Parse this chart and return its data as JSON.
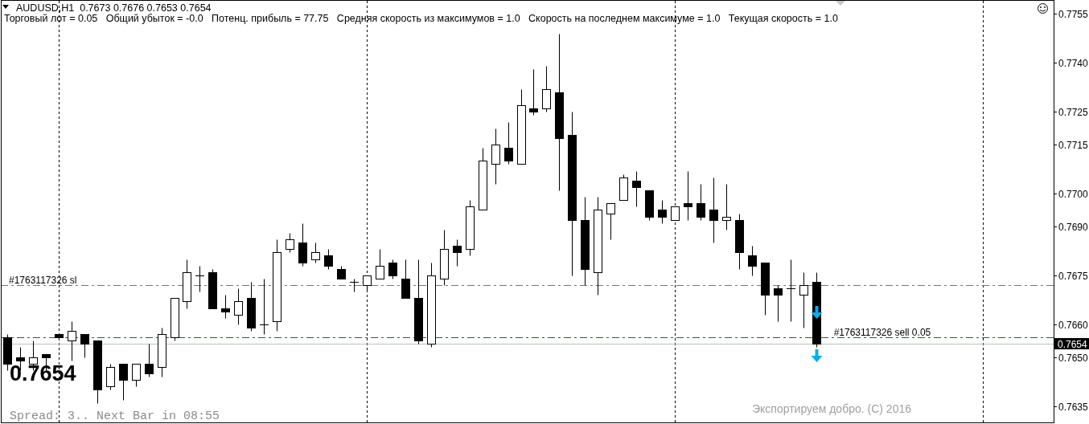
{
  "chart_data": {
    "type": "candlestick",
    "title": "AUDUSD,H1  0.7673 0.7676 0.7653 0.7654",
    "subtitle": "Торговый лот = 0.05   Общий убыток = -0.0   Потенц. прибыль = 77.75   Средняя скорость из максимумов = 1.0   Скорость на последнем максимуме = 1.0   Текущая скорость = 1.0",
    "categories": [
      null,
      null,
      null,
      null,
      null,
      null,
      null,
      null,
      null,
      null,
      null,
      null,
      null,
      null,
      null,
      null,
      null,
      null,
      null,
      null,
      null,
      null,
      null,
      null,
      null,
      null,
      null,
      null,
      null,
      null,
      null,
      null,
      null,
      null,
      null,
      null,
      null,
      null,
      null,
      null,
      null,
      null,
      null,
      null,
      null,
      null,
      null,
      null,
      null,
      null,
      null,
      null,
      null,
      null,
      null,
      null,
      null,
      null,
      null,
      null,
      null,
      null,
      null,
      null,
      null,
      null,
      null,
      null,
      null,
      null,
      null,
      null,
      null,
      null,
      null,
      null,
      null,
      null,
      null,
      null,
      null,
      null
    ],
    "ohlc": [
      [
        0.7656,
        0.7657,
        0.7646,
        0.7648
      ],
      [
        0.765,
        0.7653,
        0.7646,
        0.7649
      ],
      [
        0.7648,
        0.7655,
        0.7646,
        0.765
      ],
      [
        0.7651,
        0.7651,
        0.7646,
        0.765
      ],
      [
        0.7657,
        0.7657,
        0.7656,
        0.7656
      ],
      [
        0.7655,
        0.7661,
        0.7649,
        0.7658
      ],
      [
        0.7657,
        0.7657,
        0.765,
        0.7654
      ],
      [
        0.7655,
        0.7655,
        0.7636,
        0.764
      ],
      [
        0.7641,
        0.7648,
        0.764,
        0.7647
      ],
      [
        0.7648,
        0.7648,
        0.7637,
        0.7643
      ],
      [
        0.7643,
        0.7648,
        0.7641,
        0.7648
      ],
      [
        0.7648,
        0.7654,
        0.7644,
        0.7645
      ],
      [
        0.7647,
        0.7659,
        0.7644,
        0.7657
      ],
      [
        0.7656,
        0.7668,
        0.7655,
        0.7668
      ],
      [
        0.7667,
        0.768,
        0.7665,
        0.7676
      ],
      [
        0.7675,
        0.7678,
        0.767,
        0.7675
      ],
      [
        0.7676,
        0.7677,
        0.7665,
        0.7665
      ],
      [
        0.7665,
        0.7669,
        0.7662,
        0.7664
      ],
      [
        0.7663,
        0.7671,
        0.766,
        0.7667
      ],
      [
        0.7668,
        0.7673,
        0.7658,
        0.7659
      ],
      [
        0.766,
        0.7674,
        0.7657,
        0.766
      ],
      [
        0.7661,
        0.7686,
        0.7658,
        0.7682
      ],
      [
        0.7683,
        0.7688,
        0.7682,
        0.7686
      ],
      [
        0.7685,
        0.7691,
        0.7678,
        0.7679
      ],
      [
        0.768,
        0.7685,
        0.7679,
        0.7682
      ],
      [
        0.7681,
        0.7683,
        0.7677,
        0.7678
      ],
      [
        0.7677,
        0.7678,
        0.7674,
        0.7674
      ],
      [
        0.7673,
        0.7674,
        0.767,
        0.7673
      ],
      [
        0.7672,
        0.7675,
        0.767,
        0.7675
      ],
      [
        0.7674,
        0.7683,
        0.7674,
        0.7678
      ],
      [
        0.7679,
        0.768,
        0.7674,
        0.7675
      ],
      [
        0.7674,
        0.768,
        0.7668,
        0.7668
      ],
      [
        0.7668,
        0.768,
        0.7654,
        0.7655
      ],
      [
        0.7654,
        0.7679,
        0.7653,
        0.7675
      ],
      [
        0.7674,
        0.7689,
        0.7672,
        0.7683
      ],
      [
        0.7684,
        0.7686,
        0.7678,
        0.7682
      ],
      [
        0.7683,
        0.7698,
        0.7681,
        0.7696
      ],
      [
        0.7695,
        0.7714,
        0.7695,
        0.771
      ],
      [
        0.7709,
        0.772,
        0.7703,
        0.7715
      ],
      [
        0.7714,
        0.7722,
        0.7709,
        0.771
      ],
      [
        0.7709,
        0.7732,
        0.7709,
        0.7727
      ],
      [
        0.7726,
        0.7738,
        0.7724,
        0.7725
      ],
      [
        0.7726,
        0.7739,
        0.7725,
        0.7732
      ],
      [
        0.7731,
        0.7749,
        0.7701,
        0.7717
      ],
      [
        0.7718,
        0.7725,
        0.7675,
        0.7692
      ],
      [
        0.7692,
        0.7699,
        0.7672,
        0.7677
      ],
      [
        0.7676,
        0.7699,
        0.7669,
        0.7695
      ],
      [
        0.7694,
        0.7697,
        0.7686,
        0.7697
      ],
      [
        0.7698,
        0.7706,
        0.7698,
        0.7705
      ],
      [
        0.7704,
        0.7707,
        0.7696,
        0.7702
      ],
      [
        0.7701,
        0.7701,
        0.7692,
        0.7693
      ],
      [
        0.7695,
        0.7698,
        0.7691,
        0.7693
      ],
      [
        0.7692,
        0.7696,
        0.7692,
        0.7696
      ],
      [
        0.7697,
        0.7707,
        0.7692,
        0.7696
      ],
      [
        0.7697,
        0.7703,
        0.7692,
        0.7693
      ],
      [
        0.7695,
        0.7705,
        0.7685,
        0.7692
      ],
      [
        0.7692,
        0.7703,
        0.7689,
        0.7693
      ],
      [
        0.7692,
        0.7694,
        0.7677,
        0.7682
      ],
      [
        0.7681,
        0.7684,
        0.7675,
        0.7678
      ],
      [
        0.7679,
        0.7679,
        0.7663,
        0.7669
      ],
      [
        0.7671,
        0.7672,
        0.7661,
        0.7669
      ],
      [
        0.7671,
        0.768,
        0.7661,
        0.7671
      ],
      [
        0.7669,
        0.7676,
        0.7659,
        0.7672
      ],
      [
        0.7673,
        0.7676,
        0.7653,
        0.7654
      ],
      null,
      null,
      null,
      null,
      null,
      null,
      null,
      null,
      null,
      null,
      null,
      null,
      null,
      null,
      null,
      null,
      null,
      null
    ],
    "ylim": [
      0.763,
      0.7759
    ],
    "yticks": [
      0.7755,
      {
        "value": 0.774,
        "label": "0.7740"
      },
      0.7725,
      0.7715,
      {
        "value": 0.77,
        "label": "0.7700"
      },
      {
        "value": 0.769,
        "label": "0.7690"
      },
      0.7675,
      {
        "value": 0.766,
        "label": "0.7660"
      },
      {
        "value": 0.765,
        "label": "0.7650"
      },
      0.7635
    ],
    "tick_labels": "y",
    "grid": "x",
    "ref_lines": [
      {
        "axis": "y",
        "value": 0.7672,
        "label": "#1763117326 sl",
        "color": "#ff4500",
        "line_style": "dashdot"
      },
      {
        "axis": "y",
        "value": 0.7656,
        "label": "#1763117326 sell 0.05",
        "color": "#008000",
        "line_style": "dashdot"
      },
      {
        "axis": "y",
        "value": 0.7654,
        "label": "0.7654",
        "color": "#c0c0c0",
        "line_style": "solid"
      }
    ],
    "annotations": [
      "0.7654",
      "Spread: 3.. Next Bar in 08:55",
      "Экспортируем добро. (C) 2016"
    ]
  }
}
